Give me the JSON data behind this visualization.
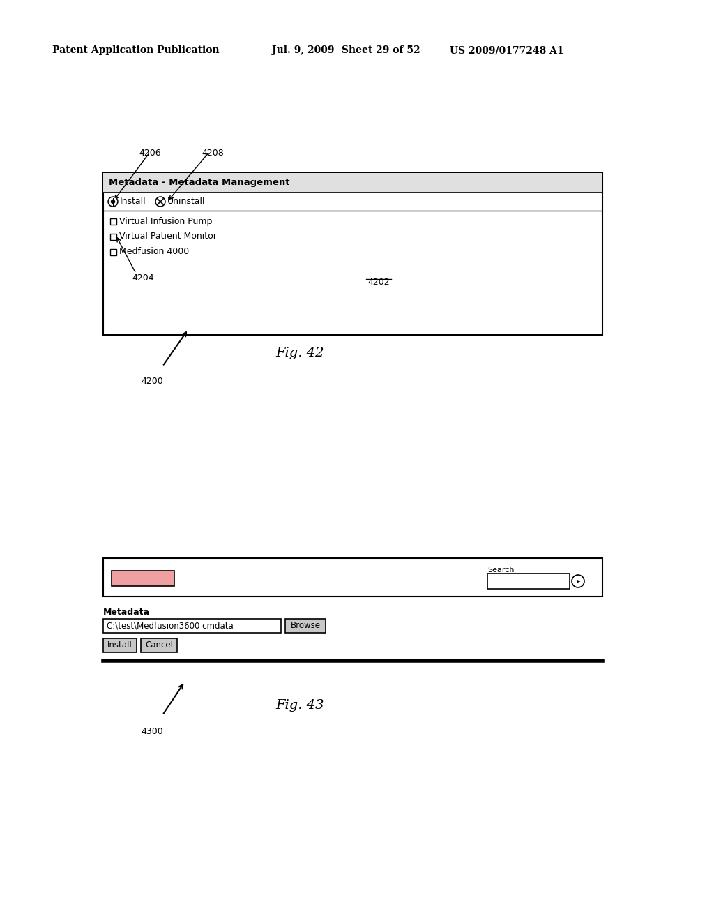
{
  "background_color": "#ffffff",
  "header_left": "Patent Application Publication",
  "header_date": "Jul. 9, 2009",
  "header_sheet": "Sheet 29 of 52",
  "header_patent": "US 2009/0177248 A1",
  "header_fontsize": 10,
  "fig42_label": "Fig. 42",
  "fig42_ref": "4200",
  "fig42_dialog_title": "Metadata - Metadata Management",
  "fig42_items": [
    "Virtual Infusion Pump",
    "Virtual Patient Monitor",
    "Medfusion 4000"
  ],
  "ref_4206": "4206",
  "ref_4208": "4208",
  "ref_4204": "4204",
  "ref_4202": "4202",
  "fig43_label": "Fig. 43",
  "fig43_ref": "4300",
  "fig43_search_label": "Search",
  "fig43_metadata_label": "Metadata",
  "fig43_path": "C:\\test\\Medfusion3600 cmdata",
  "fig43_browse": "Browse",
  "fig43_install": "Install",
  "fig43_cancel": "Cancel"
}
